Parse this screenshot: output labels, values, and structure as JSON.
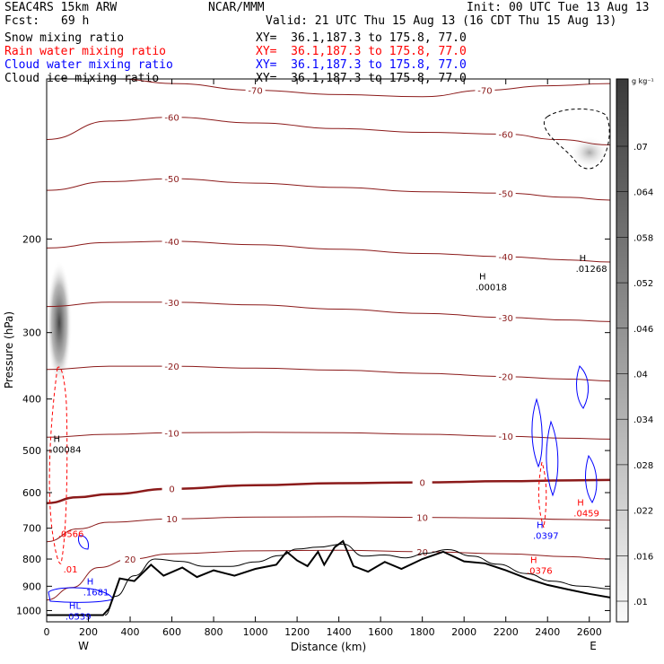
{
  "header": {
    "model": "SEAC4RS 15km ARW",
    "org": "NCAR/MMM",
    "init": "Init: 00 UTC Tue 13 Aug 13",
    "fcst_label": "Fcst:",
    "fcst_value": "69 h",
    "valid": "Valid: 21 UTC Thu 15 Aug 13 (16 CDT Thu 15 Aug 13)"
  },
  "fields": [
    {
      "name": "Snow mixing ratio",
      "xy": "XY=  36.1,187.3 to 175.8, 77.0",
      "color": "#000000"
    },
    {
      "name": "Rain water mixing ratio",
      "xy": "XY=  36.1,187.3 to 175.8, 77.0",
      "color": "#ff0000"
    },
    {
      "name": "Cloud water mixing ratio",
      "xy": "XY=  36.1,187.3 to 175.8, 77.0",
      "color": "#0000ff"
    },
    {
      "name": "Cloud ice mixing ratio",
      "xy": "XY=  36.1,187.3 to 175.8, 77.0",
      "color": "#000000"
    }
  ],
  "colorbar": {
    "unit": "g kg⁻¹",
    "ticks": [
      ".07",
      ".064",
      ".058",
      ".052",
      ".046",
      ".04",
      ".034",
      ".028",
      ".022",
      ".016",
      ".01"
    ]
  },
  "chart_data": {
    "type": "cross-section",
    "xlabel": "Distance (km)",
    "ylabel": "Pressure (hPa)",
    "xlim": [
      0,
      2700
    ],
    "ylim": [
      1050,
      100
    ],
    "y_scale": "log-pressure",
    "x_ticks": [
      0,
      200,
      400,
      600,
      800,
      1000,
      1200,
      1400,
      1600,
      1800,
      2000,
      2200,
      2400,
      2600
    ],
    "y_ticks": [
      200,
      300,
      400,
      500,
      600,
      700,
      800,
      900,
      1000
    ],
    "y_tick_labels": [
      "200",
      "300",
      "400",
      "500",
      "600",
      "700",
      "800",
      "900",
      "1000"
    ],
    "x_ends": [
      "W",
      "E"
    ],
    "temperature_contours": [
      {
        "label": "-70",
        "points": [
          [
            350,
            100
          ],
          [
            600,
            102
          ],
          [
            1000,
            105
          ],
          [
            1400,
            107
          ],
          [
            1800,
            108
          ],
          [
            2100,
            105
          ],
          [
            2400,
            103
          ],
          [
            2700,
            102
          ]
        ]
      },
      {
        "label": "-60",
        "points": [
          [
            0,
            130
          ],
          [
            300,
            120
          ],
          [
            600,
            118
          ],
          [
            1000,
            121
          ],
          [
            1400,
            124
          ],
          [
            1800,
            126
          ],
          [
            2200,
            127
          ],
          [
            2450,
            130
          ],
          [
            2700,
            133
          ]
        ]
      },
      {
        "label": "-50",
        "points": [
          [
            0,
            162
          ],
          [
            300,
            156
          ],
          [
            600,
            154
          ],
          [
            1000,
            157
          ],
          [
            1400,
            160
          ],
          [
            1800,
            163
          ],
          [
            2200,
            164
          ],
          [
            2500,
            167
          ],
          [
            2700,
            169
          ]
        ]
      },
      {
        "label": "-40",
        "points": [
          [
            0,
            208
          ],
          [
            300,
            203
          ],
          [
            600,
            202
          ],
          [
            1000,
            205
          ],
          [
            1400,
            209
          ],
          [
            1800,
            213
          ],
          [
            2200,
            216
          ],
          [
            2500,
            219
          ],
          [
            2700,
            221
          ]
        ]
      },
      {
        "label": "-30",
        "points": [
          [
            0,
            268
          ],
          [
            300,
            263
          ],
          [
            600,
            263
          ],
          [
            1000,
            266
          ],
          [
            1400,
            271
          ],
          [
            1800,
            276
          ],
          [
            2200,
            281
          ],
          [
            2500,
            284
          ],
          [
            2700,
            286
          ]
        ]
      },
      {
        "label": "-20",
        "points": [
          [
            0,
            352
          ],
          [
            300,
            347
          ],
          [
            600,
            347
          ],
          [
            1000,
            350
          ],
          [
            1400,
            353
          ],
          [
            1800,
            358
          ],
          [
            2200,
            363
          ],
          [
            2500,
            367
          ],
          [
            2700,
            370
          ]
        ]
      },
      {
        "label": "-10",
        "points": [
          [
            0,
            472
          ],
          [
            300,
            466
          ],
          [
            600,
            463
          ],
          [
            1000,
            462
          ],
          [
            1400,
            463
          ],
          [
            1800,
            466
          ],
          [
            2200,
            470
          ],
          [
            2500,
            474
          ],
          [
            2700,
            476
          ]
        ]
      },
      {
        "label": "0",
        "points": [
          [
            0,
            628
          ],
          [
            150,
            612
          ],
          [
            300,
            604
          ],
          [
            600,
            590
          ],
          [
            1000,
            581
          ],
          [
            1400,
            576
          ],
          [
            1800,
            574
          ],
          [
            2200,
            571
          ],
          [
            2500,
            569
          ],
          [
            2700,
            568
          ]
        ],
        "bold": true
      },
      {
        "label": "10",
        "points": [
          [
            0,
            742
          ],
          [
            150,
            702
          ],
          [
            300,
            682
          ],
          [
            600,
            672
          ],
          [
            1000,
            667
          ],
          [
            1400,
            666
          ],
          [
            1800,
            668
          ],
          [
            2200,
            670
          ],
          [
            2500,
            674
          ],
          [
            2700,
            676
          ]
        ]
      },
      {
        "label": "20",
        "points": [
          [
            0,
            955
          ],
          [
            120,
            905
          ],
          [
            250,
            830
          ],
          [
            400,
            800
          ],
          [
            600,
            782
          ],
          [
            1000,
            772
          ],
          [
            1400,
            770
          ],
          [
            1800,
            775
          ],
          [
            2200,
            782
          ],
          [
            2500,
            792
          ],
          [
            2700,
            800
          ]
        ]
      }
    ],
    "terrain": [
      [
        0,
        1020
      ],
      [
        270,
        1020
      ],
      [
        300,
        990
      ],
      [
        350,
        870
      ],
      [
        420,
        880
      ],
      [
        500,
        820
      ],
      [
        560,
        860
      ],
      [
        650,
        830
      ],
      [
        720,
        865
      ],
      [
        800,
        840
      ],
      [
        900,
        860
      ],
      [
        1000,
        835
      ],
      [
        1100,
        820
      ],
      [
        1150,
        775
      ],
      [
        1200,
        805
      ],
      [
        1250,
        825
      ],
      [
        1300,
        775
      ],
      [
        1330,
        820
      ],
      [
        1380,
        760
      ],
      [
        1420,
        740
      ],
      [
        1470,
        825
      ],
      [
        1540,
        845
      ],
      [
        1620,
        810
      ],
      [
        1700,
        835
      ],
      [
        1800,
        800
      ],
      [
        1900,
        775
      ],
      [
        2000,
        808
      ],
      [
        2100,
        815
      ],
      [
        2200,
        840
      ],
      [
        2300,
        870
      ],
      [
        2400,
        895
      ],
      [
        2500,
        913
      ],
      [
        2600,
        930
      ],
      [
        2700,
        945
      ]
    ],
    "terrain_shadow": [
      [
        280,
        1020
      ],
      [
        330,
        940
      ],
      [
        420,
        860
      ],
      [
        520,
        800
      ],
      [
        640,
        808
      ],
      [
        760,
        826
      ],
      [
        880,
        826
      ],
      [
        1000,
        810
      ],
      [
        1120,
        788
      ],
      [
        1200,
        766
      ],
      [
        1300,
        760
      ],
      [
        1420,
        750
      ],
      [
        1520,
        790
      ],
      [
        1620,
        786
      ],
      [
        1720,
        796
      ],
      [
        1820,
        780
      ],
      [
        1920,
        768
      ],
      [
        2040,
        790
      ],
      [
        2160,
        818
      ],
      [
        2300,
        852
      ],
      [
        2420,
        880
      ],
      [
        2560,
        900
      ],
      [
        2700,
        910
      ]
    ],
    "annotations": [
      {
        "x": 2055,
        "p": 240,
        "label": "H",
        "value": ".00018",
        "color": "#000000"
      },
      {
        "x": 2535,
        "p": 222,
        "label": "H",
        "value": ".01268",
        "color": "#000000"
      },
      {
        "x": 15,
        "p": 485,
        "label": "H",
        "value": ".00084",
        "color": "#000000"
      },
      {
        "x": 55,
        "p": 700,
        "label": "",
        "value": ".0566",
        "color": "#ff0000"
      },
      {
        "x": 80,
        "p": 815,
        "label": "",
        "value": ".01",
        "color": "#ff0000"
      },
      {
        "x": 2330,
        "p": 705,
        "label": "H",
        "value": ".0397",
        "color": "#0000ff"
      },
      {
        "x": 2525,
        "p": 640,
        "label": "H",
        "value": ".0459",
        "color": "#ff0000"
      },
      {
        "x": 2300,
        "p": 820,
        "label": "H",
        "value": ".0376",
        "color": "#ff0000"
      },
      {
        "x": 175,
        "p": 900,
        "label": "H",
        "value": ".1681",
        "color": "#0000ff"
      },
      {
        "x": 90,
        "p": 1000,
        "label": "HL",
        "value": ".0539",
        "color": "#0000ff"
      }
    ]
  }
}
